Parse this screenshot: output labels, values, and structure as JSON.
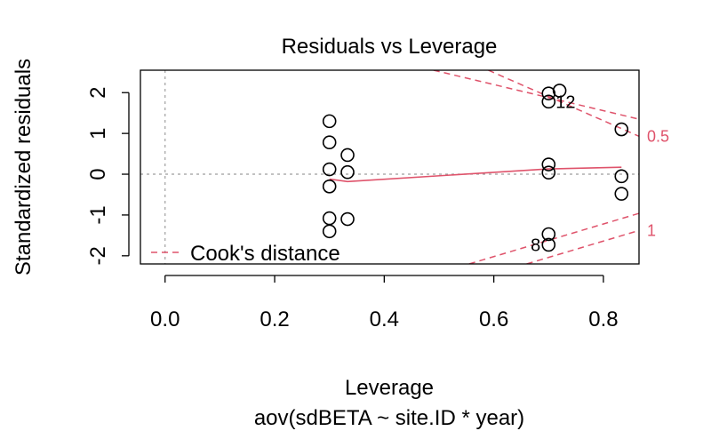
{
  "chart_data": {
    "type": "scatter",
    "title": "Residuals vs Leverage",
    "xlabel": "Leverage",
    "subtitle": "aov(sdBETA ~ site.ID * year)",
    "ylabel": "Standardized residuals",
    "xlim": [
      -0.045,
      0.865
    ],
    "ylim": [
      -2.2,
      2.55
    ],
    "x_ticks": [
      "0.0",
      "0.2",
      "0.4",
      "0.6",
      "0.8"
    ],
    "x_tick_values": [
      0.0,
      0.2,
      0.4,
      0.6,
      0.8
    ],
    "y_ticks": [
      "-2",
      "-1",
      "0",
      "1",
      "2"
    ],
    "y_tick_values": [
      -2,
      -1,
      0,
      1,
      2
    ],
    "grid": false,
    "reference_lines": {
      "x": 0,
      "y": 0
    },
    "points": [
      {
        "x": 0.3,
        "y": 1.3
      },
      {
        "x": 0.3,
        "y": 0.78
      },
      {
        "x": 0.3,
        "y": 0.12
      },
      {
        "x": 0.3,
        "y": -0.3
      },
      {
        "x": 0.3,
        "y": -1.08
      },
      {
        "x": 0.3,
        "y": -1.4
      },
      {
        "x": 0.333,
        "y": 0.47
      },
      {
        "x": 0.333,
        "y": 0.05
      },
      {
        "x": 0.333,
        "y": -1.1
      },
      {
        "x": 0.7,
        "y": 1.98
      },
      {
        "x": 0.7,
        "y": 1.78
      },
      {
        "x": 0.72,
        "y": 2.05
      },
      {
        "x": 0.7,
        "y": 0.24
      },
      {
        "x": 0.7,
        "y": 0.04
      },
      {
        "x": 0.7,
        "y": -1.47
      },
      {
        "x": 0.7,
        "y": -1.73
      },
      {
        "x": 0.833,
        "y": 1.1
      },
      {
        "x": 0.833,
        "y": -0.05
      },
      {
        "x": 0.833,
        "y": -0.48
      }
    ],
    "point_labels": [
      {
        "text": "12",
        "x": 0.7,
        "y": 1.78
      },
      {
        "text": "8",
        "x": 0.7,
        "y": -1.73
      }
    ],
    "smooth_line": {
      "color": "#DF536B",
      "x": [
        0.3,
        0.333,
        0.7,
        0.833
      ],
      "y": [
        -0.12,
        -0.18,
        0.13,
        0.17
      ]
    },
    "cooks_distance": {
      "color": "#DF536B",
      "levels": [
        {
          "label": "0.5",
          "upper_x": [
            0.49,
            0.865
          ],
          "upper_y": [
            2.55,
            1.35
          ],
          "lower_x": [
            0.555,
            0.865
          ],
          "lower_y": [
            -2.2,
            -0.96
          ]
        },
        {
          "label": "1",
          "upper_x": [
            0.59,
            0.865
          ],
          "upper_y": [
            2.55,
            0.93
          ],
          "lower_x": [
            0.66,
            0.865
          ],
          "lower_y": [
            -2.2,
            -1.38
          ]
        }
      ],
      "label_positions": [
        {
          "label": "0.5",
          "y": 0.93
        },
        {
          "label": "1",
          "y": -1.38
        }
      ]
    },
    "legend": {
      "position": "bottom-left",
      "entries": [
        {
          "label": "Cook's distance",
          "color": "#DF536B",
          "style": "dashed"
        }
      ]
    }
  }
}
